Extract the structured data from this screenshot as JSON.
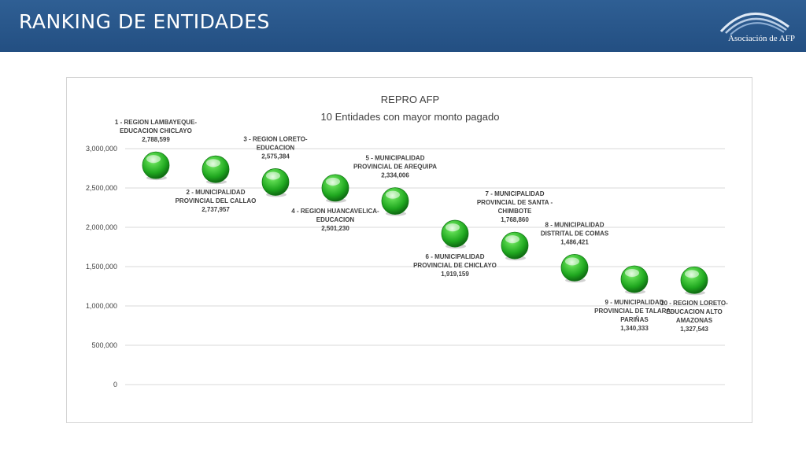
{
  "header": {
    "title": "RANKING DE ENTIDADES",
    "logo_text": "Asociación de AFP"
  },
  "colors": {
    "header_bg": "#2a5a8e",
    "marker_green": "#22b422",
    "gridline": "#d9d9d9",
    "label_text": "#404040"
  },
  "chart_data": {
    "type": "scatter",
    "title": "REPRO AFP",
    "subtitle": "10 Entidades con mayor monto pagado",
    "xlabel": "",
    "ylabel": "",
    "ylim": [
      0,
      3000000
    ],
    "y_ticks": [
      "0",
      "500,000",
      "1,000,000",
      "1,500,000",
      "2,000,000",
      "2,500,000",
      "3,000,000"
    ],
    "grid": true,
    "legend": "none",
    "points": [
      {
        "label": [
          "1 - REGION LAMBAYEQUE-",
          "EDUCACION CHICLAYO"
        ],
        "value_text": "2,788,599",
        "value": 2788599,
        "label_pos": "above"
      },
      {
        "label": [
          "2 - MUNICIPALIDAD",
          "PROVINCIAL DEL CALLAO"
        ],
        "value_text": "2,737,957",
        "value": 2737957,
        "label_pos": "below"
      },
      {
        "label": [
          "3 - REGION LORETO-",
          "EDUCACION"
        ],
        "value_text": "2,575,384",
        "value": 2575384,
        "label_pos": "above"
      },
      {
        "label": [
          "4 - REGION HUANCAVELICA-",
          "EDUCACION"
        ],
        "value_text": "2,501,230",
        "value": 2501230,
        "label_pos": "below"
      },
      {
        "label": [
          "5 - MUNICIPALIDAD",
          "PROVINCIAL DE AREQUIPA"
        ],
        "value_text": "2,334,006",
        "value": 2334006,
        "label_pos": "above"
      },
      {
        "label": [
          "6 - MUNICIPALIDAD",
          "PROVINCIAL DE CHICLAYO"
        ],
        "value_text": "1,919,159",
        "value": 1919159,
        "label_pos": "below"
      },
      {
        "label": [
          "7 - MUNICIPALIDAD",
          "PROVINCIAL DE SANTA -",
          "CHIMBOTE"
        ],
        "value_text": "1,768,860",
        "value": 1768860,
        "label_pos": "above"
      },
      {
        "label": [
          "8 - MUNICIPALIDAD",
          "DISTRITAL DE COMAS"
        ],
        "value_text": "1,486,421",
        "value": 1486421,
        "label_pos": "above"
      },
      {
        "label": [
          "9 - MUNICIPALIDAD",
          "PROVINCIAL DE TALARA -",
          "PARIÑAS"
        ],
        "value_text": "1,340,333",
        "value": 1340333,
        "label_pos": "below"
      },
      {
        "label": [
          "10 - REGION LORETO-",
          "EDUCACION ALTO",
          "AMAZONAS"
        ],
        "value_text": "1,327,543",
        "value": 1327543,
        "label_pos": "below"
      }
    ]
  }
}
